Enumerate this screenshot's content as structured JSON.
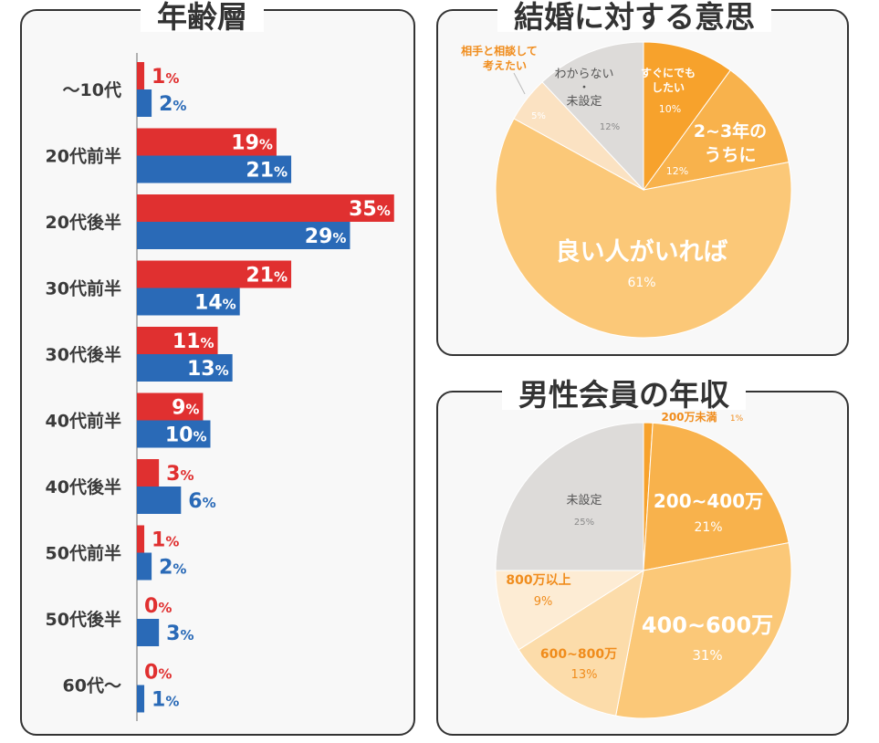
{
  "chart_data": [
    {
      "type": "bar",
      "orientation": "horizontal",
      "title": "年齢層",
      "categories": [
        "〜10代",
        "20代前半",
        "20代後半",
        "30代前半",
        "30代後半",
        "40代前半",
        "40代後半",
        "50代前半",
        "50代後半",
        "60代〜"
      ],
      "series": [
        {
          "color": "#e03030",
          "values": [
            1,
            19,
            35,
            21,
            11,
            9,
            3,
            1,
            0,
            0
          ]
        },
        {
          "color": "#2a6ab7",
          "values": [
            2,
            21,
            29,
            14,
            13,
            10,
            6,
            2,
            3,
            1
          ]
        }
      ],
      "unit": "%",
      "xlim": [
        0,
        35
      ]
    },
    {
      "type": "pie",
      "title": "結婚に対する意思",
      "slices": [
        {
          "label": "すぐにでもしたい",
          "value": 10,
          "pct": "10%",
          "color": "#f7a22c"
        },
        {
          "label": "2~3年のうちに",
          "value": 12,
          "pct": "12%",
          "color": "#f8b24c"
        },
        {
          "label": "良い人がいれば",
          "value": 61,
          "pct": "61%",
          "color": "#fbc878"
        },
        {
          "label": "相手と相談して考えたい",
          "value": 5,
          "pct": "5%",
          "color": "#fbe2c2"
        },
        {
          "label": "わからない・未設定",
          "value": 12,
          "pct": "12%",
          "color": "#dddbd9"
        }
      ]
    },
    {
      "type": "pie",
      "title": "男性会員の年収",
      "slices": [
        {
          "label": "200万未満",
          "value": 1,
          "pct": "1%",
          "color": "#f7a22c"
        },
        {
          "label": "200~400万",
          "value": 21,
          "pct": "21%",
          "color": "#f8b24c"
        },
        {
          "label": "400~600万",
          "value": 31,
          "pct": "31%",
          "color": "#fbc878"
        },
        {
          "label": "600~800万",
          "value": 13,
          "pct": "13%",
          "color": "#fcdcaa"
        },
        {
          "label": "800万以上",
          "value": 9,
          "pct": "9%",
          "color": "#fdecd4"
        },
        {
          "label": "未設定",
          "value": 25,
          "pct": "25%",
          "color": "#dddbd9"
        }
      ]
    }
  ],
  "text_colors": {
    "orange": "#f08c1c",
    "grey": "#555555",
    "light_grey": "#8a8a8a"
  }
}
